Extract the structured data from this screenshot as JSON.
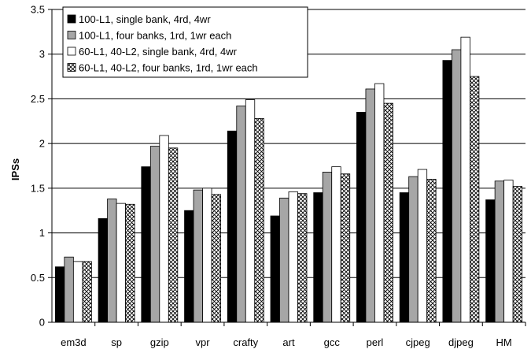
{
  "chart_data": {
    "type": "bar",
    "title": "",
    "xlabel": "",
    "ylabel": "IPSs",
    "ylim": [
      0,
      3.5
    ],
    "yticks": [
      "0",
      "0.5",
      "1",
      "1.5",
      "2",
      "2.5",
      "3",
      "3.5"
    ],
    "grid": "horizontal",
    "legend_position": "top-left",
    "categories": [
      "em3d",
      "sp",
      "gzip",
      "vpr",
      "crafty",
      "art",
      "gcc",
      "perl",
      "cjpeg",
      "djpeg",
      "HM"
    ],
    "series": [
      {
        "name": "100-L1, single bank, 4rd, 4wr",
        "fill": "#000000",
        "pattern": "solid",
        "values": [
          0.62,
          1.16,
          1.74,
          1.25,
          2.14,
          1.19,
          1.45,
          2.35,
          1.45,
          2.93,
          1.37
        ]
      },
      {
        "name": "100-L1, four banks, 1rd, 1wr each",
        "fill": "#a6a6a6",
        "pattern": "solid",
        "values": [
          0.73,
          1.38,
          1.97,
          1.48,
          2.42,
          1.39,
          1.68,
          2.61,
          1.63,
          3.05,
          1.58
        ]
      },
      {
        "name": "60-L1, 40-L2, single bank, 4rd, 4wr",
        "fill": "#ffffff",
        "pattern": "solid",
        "values": [
          0.68,
          1.33,
          2.09,
          1.5,
          2.49,
          1.46,
          1.74,
          2.67,
          1.71,
          3.19,
          1.59
        ]
      },
      {
        "name": "60-L1, 40-L2, four banks, 1rd, 1wr each",
        "fill": "#ffffff",
        "pattern": "crosshatch",
        "values": [
          0.68,
          1.32,
          1.95,
          1.43,
          2.28,
          1.44,
          1.66,
          2.45,
          1.6,
          2.75,
          1.52
        ]
      }
    ]
  }
}
